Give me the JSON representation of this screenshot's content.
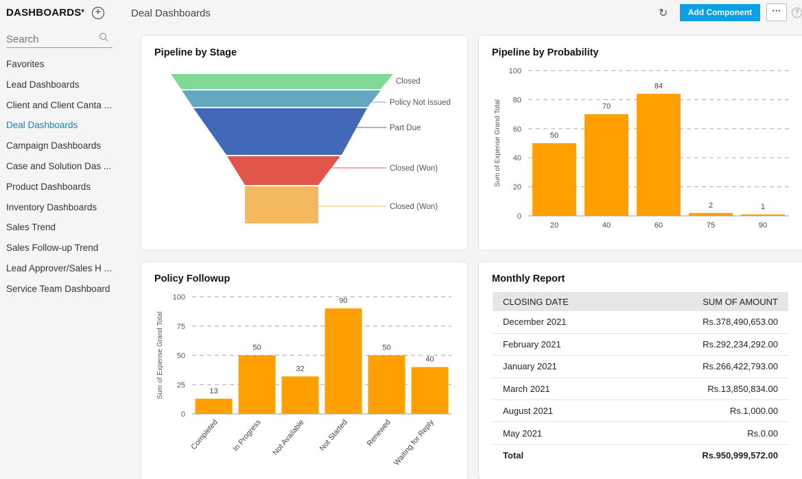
{
  "header": {
    "brand": "DASHBOARDS",
    "page_title": "Deal Dashboards",
    "add_button": "Add Component",
    "more_label": "···",
    "help_label": "?"
  },
  "sidebar": {
    "search_placeholder": "Search",
    "items": [
      {
        "label": "Favorites",
        "active": false
      },
      {
        "label": "Lead Dashboards",
        "active": false
      },
      {
        "label": "Client and Client Canta ...",
        "active": false
      },
      {
        "label": "Deal Dashboards",
        "active": true
      },
      {
        "label": "Campaign Dashboards",
        "active": false
      },
      {
        "label": "Case and Solution Das ...",
        "active": false
      },
      {
        "label": "Product Dashboards",
        "active": false
      },
      {
        "label": "Inventory Dashboards",
        "active": false
      },
      {
        "label": "Sales Trend",
        "active": false
      },
      {
        "label": "Sales Follow-up Trend",
        "active": false
      },
      {
        "label": "Lead Approver/Sales H ...",
        "active": false
      },
      {
        "label": "Service Team Dashboard",
        "active": false
      }
    ]
  },
  "colors": {
    "bar": "#ffa000",
    "accent": "#0aa0e6",
    "funnel": [
      "#80d994",
      "#64a8bf",
      "#4268b8",
      "#e2554a",
      "#f4b85c"
    ]
  },
  "chart_data": [
    {
      "type": "funnel",
      "title": "Pipeline by Stage",
      "stages": [
        "Closed",
        "Policy Not Issued",
        "Part Due",
        "Closed (Won)",
        "Closed (Won)"
      ]
    },
    {
      "type": "bar",
      "title": "Pipeline by Probability",
      "categories": [
        "20",
        "40",
        "60",
        "75",
        "90"
      ],
      "values": [
        50,
        70,
        84,
        2,
        1
      ],
      "ylabel": "Sum of Expense Grand Total",
      "ylim": [
        0,
        100
      ],
      "yticks": [
        0,
        20,
        40,
        60,
        80,
        100
      ],
      "grid": true
    },
    {
      "type": "bar",
      "title": "Policy Followup",
      "categories": [
        "Completed",
        "In Progress",
        "Not Available",
        "Not Started",
        "Renewed",
        "Waiting for Reply"
      ],
      "values": [
        13,
        50,
        32,
        90,
        50,
        40
      ],
      "ylabel": "Sum of Expense Grand Total",
      "ylim": [
        0,
        100
      ],
      "yticks": [
        0,
        25,
        50,
        75,
        100
      ],
      "grid": true
    }
  ],
  "monthly_report": {
    "title": "Monthly Report",
    "columns": [
      "CLOSING DATE",
      "SUM OF AMOUNT"
    ],
    "rows": [
      [
        "December 2021",
        "Rs.378,490,653.00"
      ],
      [
        "February 2021",
        "Rs.292,234,292.00"
      ],
      [
        "January 2021",
        "Rs.266,422,793.00"
      ],
      [
        "March 2021",
        "Rs.13,850,834.00"
      ],
      [
        "August 2021",
        "Rs.1,000.00"
      ],
      [
        "May 2021",
        "Rs.0.00"
      ]
    ],
    "total": [
      "Total",
      "Rs.950,999,572.00"
    ]
  }
}
